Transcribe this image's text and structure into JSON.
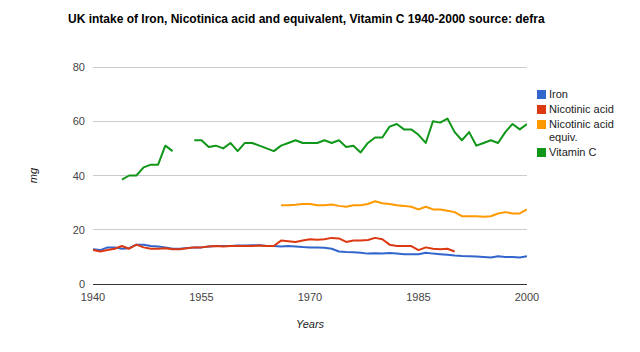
{
  "chart_data": {
    "type": "line",
    "title": "UK intake of Iron, Nicotinica acid and equivalent, Vitamin C 1940-2000 source: defra",
    "x_label": "Years",
    "y_label": "mg",
    "x": [
      1940,
      1941,
      1942,
      1943,
      1944,
      1945,
      1946,
      1947,
      1948,
      1949,
      1950,
      1951,
      1952,
      1953,
      1954,
      1955,
      1956,
      1957,
      1958,
      1959,
      1960,
      1961,
      1962,
      1963,
      1964,
      1965,
      1966,
      1967,
      1968,
      1969,
      1970,
      1971,
      1972,
      1973,
      1974,
      1975,
      1976,
      1977,
      1978,
      1979,
      1980,
      1981,
      1982,
      1983,
      1984,
      1985,
      1986,
      1987,
      1988,
      1989,
      1990,
      1991,
      1992,
      1993,
      1994,
      1995,
      1996,
      1997,
      1998,
      1999,
      2000
    ],
    "series": [
      {
        "name": "Iron",
        "color": "#3366cc",
        "values": [
          12.8,
          12.5,
          13.5,
          13.5,
          13,
          13.2,
          14.5,
          14.5,
          14,
          13.8,
          13.5,
          13,
          13,
          13.3,
          13.5,
          13.5,
          13.8,
          14,
          14,
          14,
          14.2,
          14.2,
          14.3,
          14.3,
          14,
          14,
          13.8,
          14,
          13.8,
          13.6,
          13.5,
          13.5,
          13.4,
          13,
          12,
          11.8,
          11.7,
          11.5,
          11.2,
          11.3,
          11.2,
          11.4,
          11.2,
          11,
          11,
          11,
          11.5,
          11.2,
          11,
          10.8,
          10.5,
          10.3,
          10.2,
          10.1,
          10,
          9.8,
          10.2,
          10,
          10,
          9.8,
          10.2
        ]
      },
      {
        "name": "Nicotinic acid",
        "color": "#dc3912",
        "values": [
          12.5,
          12,
          12.5,
          13,
          14,
          13,
          14.5,
          13.5,
          13,
          13,
          13.2,
          12.8,
          12.8,
          13.2,
          13.5,
          13.5,
          13.8,
          14,
          13.8,
          14,
          14,
          14,
          14,
          14.2,
          14,
          14,
          16,
          15.8,
          15.5,
          16,
          16.5,
          16.3,
          16.5,
          17,
          16.8,
          15.5,
          16,
          16,
          16.2,
          17,
          16.5,
          14.5,
          14,
          14,
          14,
          12.5,
          13.5,
          13,
          12.8,
          13,
          12,
          null,
          null,
          null,
          null,
          null,
          null,
          null,
          null,
          null,
          null
        ]
      },
      {
        "name": "Nicotinic acid equiv.",
        "color": "#ff9900",
        "values": [
          null,
          null,
          null,
          null,
          null,
          null,
          null,
          null,
          null,
          null,
          null,
          null,
          null,
          null,
          null,
          null,
          null,
          null,
          null,
          null,
          null,
          null,
          null,
          null,
          null,
          null,
          29,
          29,
          29.2,
          29.5,
          29.5,
          29,
          29,
          29.3,
          28.8,
          28.5,
          29,
          29,
          29.5,
          30.5,
          29.8,
          29.5,
          29,
          28.8,
          28.5,
          27.5,
          28.5,
          27.5,
          27.5,
          27,
          26.5,
          25,
          25,
          25,
          24.8,
          25,
          26,
          26.5,
          26,
          26,
          27.5
        ]
      },
      {
        "name": "Vitamin C",
        "color": "#109618",
        "values": [
          null,
          null,
          null,
          null,
          38.5,
          40,
          40,
          43,
          44,
          44,
          51,
          49,
          null,
          null,
          53,
          53,
          50.5,
          51,
          50,
          52,
          49,
          52,
          52,
          51,
          50,
          49,
          51,
          52,
          53,
          52,
          52,
          52,
          53,
          52,
          53,
          50.5,
          51,
          48.5,
          52,
          54,
          54,
          58,
          59,
          57,
          57,
          55,
          52,
          60,
          59.5,
          61,
          56,
          53,
          56,
          51,
          52,
          53,
          52,
          56,
          59,
          57,
          59
        ]
      }
    ],
    "xlim": [
      1940,
      2000
    ],
    "xticks": [
      1940,
      1955,
      1970,
      1985,
      2000
    ],
    "ylim": [
      0,
      80
    ],
    "yticks": [
      0,
      20,
      40,
      60,
      80
    ],
    "grid": true,
    "legend": "right"
  }
}
